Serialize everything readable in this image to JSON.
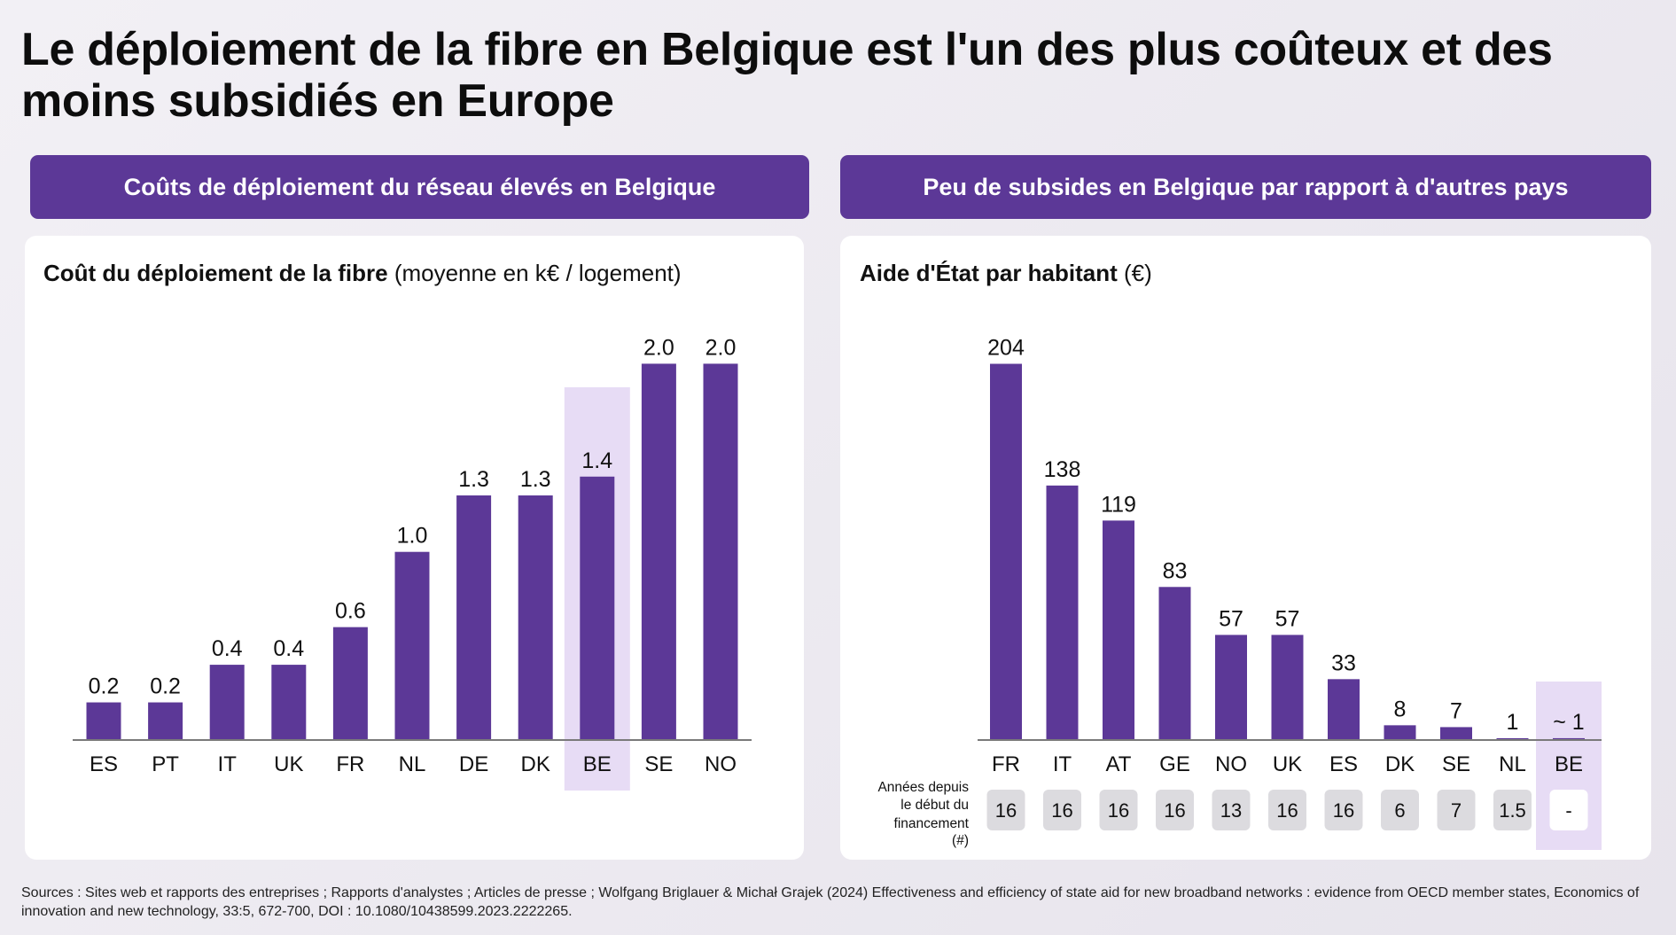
{
  "title_lines": [
    "Le déploiement de la fibre en Belgique est l'un des plus coûteux et des",
    "moins subsidiés en Europe"
  ],
  "left_panel": {
    "header": "Coûts de déploiement du réseau élevés en Belgique"
  },
  "right_panel": {
    "header": "Peu de subsides en Belgique par rapport à d'autres pays"
  },
  "sources": "Sources : Sites web et rapports des entreprises ; Rapports d'analystes ; Articles de presse ; Wolfgang Briglauer & Michał Grajek (2024) Effectiveness and efficiency of state aid for new broadband networks : evidence from OECD member states, Economics of innovation and new technology, 33:5, 672-700, DOI : 10.1080/10438599.2023.2222265.",
  "colors": {
    "bar": "#5c3897",
    "header": "#5c3897",
    "highlight": "#e7dcf5",
    "year_box": "#dcdbdf",
    "year_box_highlight": "#ffffff",
    "axis": "#7a7a7a"
  },
  "chart_data": [
    {
      "type": "bar",
      "title": "Coût du déploiement de la fibre",
      "title_note": "(moyenne en k€ / logement)",
      "categories": [
        "ES",
        "PT",
        "IT",
        "UK",
        "FR",
        "NL",
        "DE",
        "DK",
        "BE",
        "SE",
        "NO"
      ],
      "values": [
        0.2,
        0.2,
        0.4,
        0.4,
        0.6,
        1.0,
        1.3,
        1.3,
        1.4,
        2.0,
        2.0
      ],
      "data_labels": [
        "0.2",
        "0.2",
        "0.4",
        "0.4",
        "0.6",
        "1.0",
        "1.3",
        "1.3",
        "1.4",
        "2.0",
        "2.0"
      ],
      "highlight_index": 8,
      "grid": false
    },
    {
      "type": "bar",
      "title": "Aide d'État par habitant",
      "title_note": "(€)",
      "categories": [
        "FR",
        "IT",
        "AT",
        "GE",
        "NO",
        "UK",
        "ES",
        "DK",
        "SE",
        "NL",
        "BE"
      ],
      "values": [
        204,
        138,
        119,
        83,
        57,
        57,
        33,
        8,
        7,
        1,
        1
      ],
      "data_labels": [
        "204",
        "138",
        "119",
        "83",
        "57",
        "57",
        "33",
        "8",
        "7",
        "1",
        "~ 1"
      ],
      "highlight_index": 10,
      "grid": false,
      "secondary_row": {
        "label_lines": [
          "Années depuis",
          "le début du",
          "financement",
          "(#)"
        ],
        "values": [
          "16",
          "16",
          "16",
          "16",
          "13",
          "16",
          "16",
          "6",
          "7",
          "1.5",
          "-"
        ]
      }
    }
  ]
}
